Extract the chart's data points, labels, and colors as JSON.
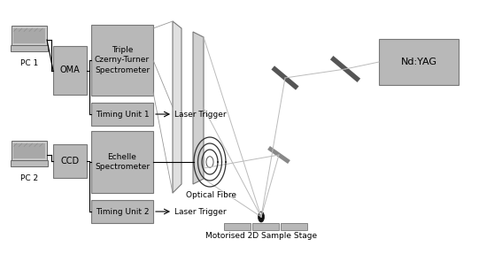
{
  "bg_color": "#ffffff",
  "box_color": "#b8b8b8",
  "box_edge": "#777777",
  "dark_gray": "#555555",
  "line_color": "#000000",
  "light_line": "#bbbbbb",
  "text_color": "#000000",
  "ndyag_label": "Nd:YAG",
  "pc1_label": "PC 1",
  "pc2_label": "PC 2",
  "oma_label": "OMA",
  "ccd_label": "CCD",
  "triple_label": "Triple\nCzerny-Turner\nSpectrometer",
  "timing1_label": "Timing Unit 1",
  "echelle_label": "Echelle\nSpectrometer",
  "timing2_label": "Timing Unit 2",
  "laser_trigger1": "Laser Trigger",
  "laser_trigger2": "Laser Trigger",
  "optical_fibre_label": "Optical Fibre",
  "sample_stage_label": "Motorised 2D Sample Stage"
}
